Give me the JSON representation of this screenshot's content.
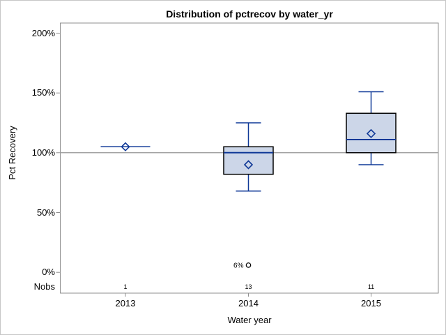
{
  "window": {
    "background": "#ffffff",
    "border_color": "#c6c6c6"
  },
  "chart_data": {
    "type": "boxplot",
    "title": "Distribution of pctrecov by water_yr",
    "xlabel": "Water year",
    "ylabel": "Pct Recovery",
    "ytick_values": [
      0,
      50,
      100,
      150,
      200
    ],
    "ytick_labels": [
      "0%",
      "50%",
      "100%",
      "150%",
      "200%"
    ],
    "ylim": [
      -17,
      208
    ],
    "grid": "off",
    "legend": "none",
    "reference_line": 100,
    "nobs_row_label": "Nobs",
    "categories": [
      "2013",
      "2014",
      "2015"
    ],
    "nobs": [
      "1",
      "13",
      "11"
    ],
    "boxes": [
      {
        "category": "2013",
        "n": 1,
        "kind": "single",
        "value": 105,
        "mean": 105
      },
      {
        "category": "2014",
        "n": 13,
        "kind": "box",
        "whisker_low": 68,
        "q1": 82,
        "median": 100,
        "q3": 105,
        "whisker_high": 125,
        "mean": 90,
        "outliers": [
          {
            "value": 6,
            "label": "6%"
          }
        ]
      },
      {
        "category": "2015",
        "n": 11,
        "kind": "box",
        "whisker_low": 90,
        "q1": 100,
        "median": 111,
        "q3": 133,
        "whisker_high": 151,
        "mean": 116,
        "outliers": []
      }
    ],
    "colors": {
      "box_fill": "#ccd6e8",
      "box_edge": "#000000",
      "line": "#0f3897",
      "axis": "#8f8f8f",
      "reference": "#a3a3a3",
      "outlier": "#000000",
      "text": "#000000"
    }
  }
}
